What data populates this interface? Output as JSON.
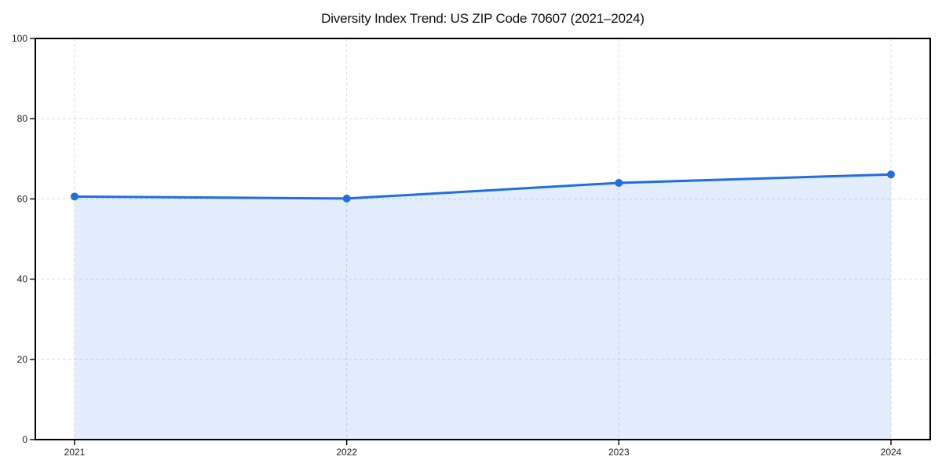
{
  "chart_data": {
    "type": "area",
    "title": "Diversity Index Trend: US ZIP Code 70607 (2021–2024)",
    "categories": [
      "2021",
      "2022",
      "2023",
      "2024"
    ],
    "values": [
      60.6,
      60.1,
      64.0,
      66.1
    ],
    "xlabel": "",
    "ylabel": "",
    "ylim": [
      0,
      100
    ],
    "yticks": [
      0,
      20,
      40,
      60,
      80,
      100
    ],
    "grid": true,
    "legend_position": "none",
    "colors": {
      "line": "#1f6fe0",
      "marker": "#1f6fe0",
      "fill": "#1f6fe0",
      "fill_opacity": 0.12,
      "grid": "#dedede",
      "axis": "#000000",
      "tick_label": "#1a1a1a",
      "title": "#111111",
      "background": "#ffffff"
    }
  }
}
